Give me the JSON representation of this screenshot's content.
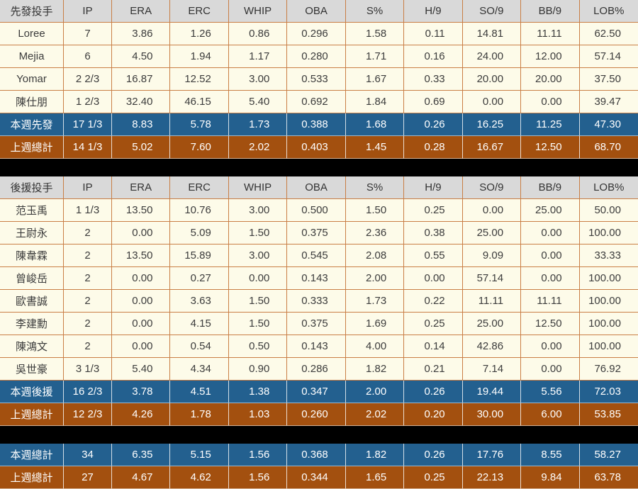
{
  "table_colors": {
    "header_bg": "#d9d9d9",
    "player_row_bg": "#fdfbe9",
    "week_summary_bg": "#23608f",
    "prev_summary_bg": "#a3500f",
    "separator_bg": "#000000",
    "grid_line": "#c97e45",
    "summary_text": "#ffffff",
    "body_text": "#3c3c3c"
  },
  "chart_data": {
    "type": "table",
    "stat_columns": [
      "IP",
      "ERA",
      "ERC",
      "WHIP",
      "OBA",
      "S%",
      "H/9",
      "SO/9",
      "BB/9",
      "LOB%"
    ],
    "sections": [
      {
        "group_label": "先發投手",
        "players": [
          {
            "name": "Loree",
            "values": [
              "7",
              "3.86",
              "1.26",
              "0.86",
              "0.296",
              "1.58",
              "0.11",
              "14.81",
              "11.11",
              "62.50"
            ]
          },
          {
            "name": "Mejia",
            "values": [
              "6",
              "4.50",
              "1.94",
              "1.17",
              "0.280",
              "1.71",
              "0.16",
              "24.00",
              "12.00",
              "57.14"
            ]
          },
          {
            "name": "Yomar",
            "values": [
              "2 2/3",
              "16.87",
              "12.52",
              "3.00",
              "0.533",
              "1.67",
              "0.33",
              "20.00",
              "20.00",
              "37.50"
            ]
          },
          {
            "name": "陳仕朋",
            "values": [
              "1 2/3",
              "32.40",
              "46.15",
              "5.40",
              "0.692",
              "1.84",
              "0.69",
              "0.00",
              "0.00",
              "39.47"
            ]
          }
        ],
        "summaries": [
          {
            "name": "本週先發",
            "style": "week",
            "values": [
              "17 1/3",
              "8.83",
              "5.78",
              "1.73",
              "0.388",
              "1.68",
              "0.26",
              "16.25",
              "11.25",
              "47.30"
            ]
          },
          {
            "name": "上週總計",
            "style": "prev",
            "values": [
              "14 1/3",
              "5.02",
              "7.60",
              "2.02",
              "0.403",
              "1.45",
              "0.28",
              "16.67",
              "12.50",
              "68.70"
            ]
          }
        ]
      },
      {
        "group_label": "後援投手",
        "players": [
          {
            "name": "范玉禹",
            "values": [
              "1 1/3",
              "13.50",
              "10.76",
              "3.00",
              "0.500",
              "1.50",
              "0.25",
              "0.00",
              "25.00",
              "50.00"
            ]
          },
          {
            "name": "王尉永",
            "values": [
              "2",
              "0.00",
              "5.09",
              "1.50",
              "0.375",
              "2.36",
              "0.38",
              "25.00",
              "0.00",
              "100.00"
            ]
          },
          {
            "name": "陳韋霖",
            "values": [
              "2",
              "13.50",
              "15.89",
              "3.00",
              "0.545",
              "2.08",
              "0.55",
              "9.09",
              "0.00",
              "33.33"
            ]
          },
          {
            "name": "曾峻岳",
            "values": [
              "2",
              "0.00",
              "0.27",
              "0.00",
              "0.143",
              "2.00",
              "0.00",
              "57.14",
              "0.00",
              "100.00"
            ]
          },
          {
            "name": "歐書誠",
            "values": [
              "2",
              "0.00",
              "3.63",
              "1.50",
              "0.333",
              "1.73",
              "0.22",
              "11.11",
              "11.11",
              "100.00"
            ]
          },
          {
            "name": "李建勳",
            "values": [
              "2",
              "0.00",
              "4.15",
              "1.50",
              "0.375",
              "1.69",
              "0.25",
              "25.00",
              "12.50",
              "100.00"
            ]
          },
          {
            "name": "陳鴻文",
            "values": [
              "2",
              "0.00",
              "0.54",
              "0.50",
              "0.143",
              "4.00",
              "0.14",
              "42.86",
              "0.00",
              "100.00"
            ]
          },
          {
            "name": "吳世豪",
            "values": [
              "3 1/3",
              "5.40",
              "4.34",
              "0.90",
              "0.286",
              "1.82",
              "0.21",
              "7.14",
              "0.00",
              "76.92"
            ]
          }
        ],
        "summaries": [
          {
            "name": "本週後援",
            "style": "week",
            "values": [
              "16 2/3",
              "3.78",
              "4.51",
              "1.38",
              "0.347",
              "2.00",
              "0.26",
              "19.44",
              "5.56",
              "72.03"
            ]
          },
          {
            "name": "上週總計",
            "style": "prev",
            "values": [
              "12 2/3",
              "4.26",
              "1.78",
              "1.03",
              "0.260",
              "2.02",
              "0.20",
              "30.00",
              "6.00",
              "53.85"
            ]
          }
        ]
      },
      {
        "group_label": null,
        "players": [],
        "summaries": [
          {
            "name": "本週總計",
            "style": "week",
            "values": [
              "34",
              "6.35",
              "5.15",
              "1.56",
              "0.368",
              "1.82",
              "0.26",
              "17.76",
              "8.55",
              "58.27"
            ]
          },
          {
            "name": "上週總計",
            "style": "prev",
            "values": [
              "27",
              "4.67",
              "4.62",
              "1.56",
              "0.344",
              "1.65",
              "0.25",
              "22.13",
              "9.84",
              "63.78"
            ]
          }
        ]
      }
    ]
  }
}
